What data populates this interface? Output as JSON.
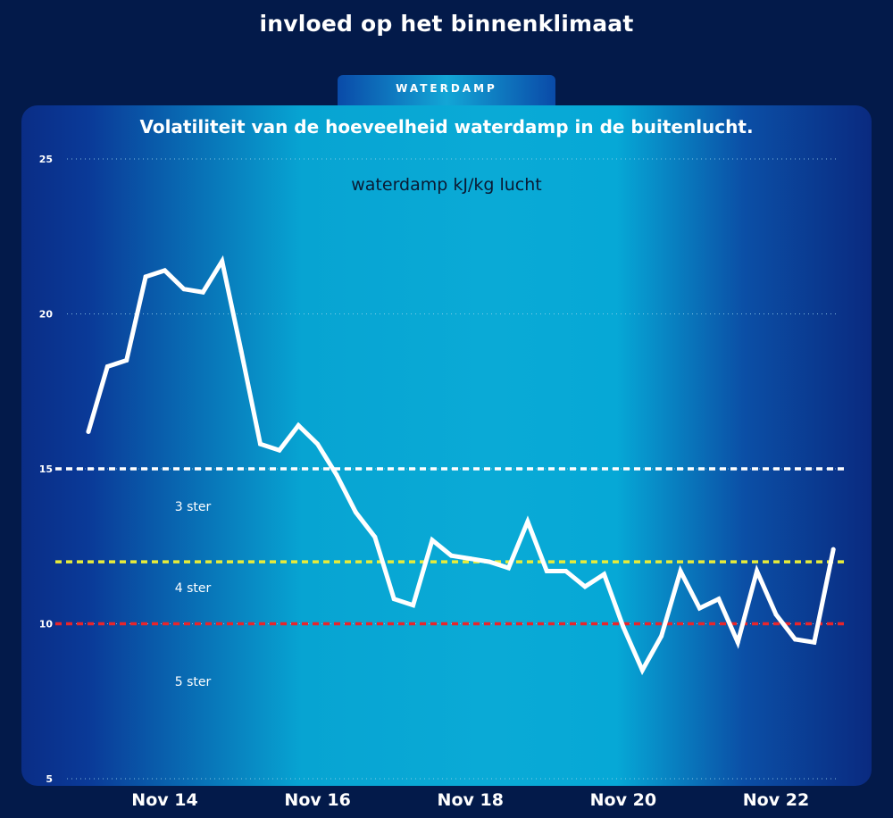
{
  "header": {
    "title": "invloed op het binnenklimaat",
    "tab_label": "WATERDAMP"
  },
  "chart_data": {
    "type": "line",
    "title": "Volatiliteit van de hoeveelheid waterdamp in de buitenlucht.",
    "ylabel": "waterdamp kJ/kg lucht",
    "xlabel": "",
    "ylim": [
      5,
      25
    ],
    "yticks": [
      5,
      10,
      15,
      20,
      25
    ],
    "xticks": [
      {
        "label": "Nov 14",
        "x": 14.0
      },
      {
        "label": "Nov 16",
        "x": 16.0
      },
      {
        "label": "Nov 18",
        "x": 18.0
      },
      {
        "label": "Nov 20",
        "x": 20.0
      },
      {
        "label": "Nov 22",
        "x": 22.0
      }
    ],
    "xlim": [
      12.72,
      22.83
    ],
    "grid": true,
    "series": [
      {
        "color": "#ffffff",
        "x": [
          13.0,
          13.25,
          13.5,
          13.75,
          14.0,
          14.25,
          14.5,
          14.75,
          15.0,
          15.25,
          15.5,
          15.75,
          16.0,
          16.25,
          16.5,
          16.75,
          17.0,
          17.25,
          17.5,
          17.75,
          18.0,
          18.25,
          18.5,
          18.75,
          19.0,
          19.25,
          19.5,
          19.75,
          20.0,
          20.25,
          20.5,
          20.75,
          21.0,
          21.25,
          21.5,
          21.75,
          22.0,
          22.25,
          22.5,
          22.75
        ],
        "values": [
          16.2,
          18.3,
          18.5,
          21.2,
          21.4,
          20.8,
          20.7,
          21.7,
          18.8,
          15.8,
          15.6,
          16.4,
          15.8,
          14.8,
          13.6,
          12.8,
          10.8,
          10.6,
          12.7,
          12.2,
          12.1,
          12.0,
          11.8,
          13.3,
          11.7,
          11.7,
          11.2,
          11.6,
          9.9,
          8.5,
          9.6,
          11.7,
          10.5,
          10.8,
          9.4,
          11.7,
          10.3,
          9.5,
          9.4,
          12.4
        ]
      }
    ],
    "thresholds": [
      {
        "value": 15,
        "color": "#ffffff",
        "label": "3 ster"
      },
      {
        "value": 12,
        "color": "#e8ec3a",
        "label": "4 ster"
      },
      {
        "value": 10,
        "color": "#e8252b",
        "label": "5 ster"
      }
    ]
  }
}
